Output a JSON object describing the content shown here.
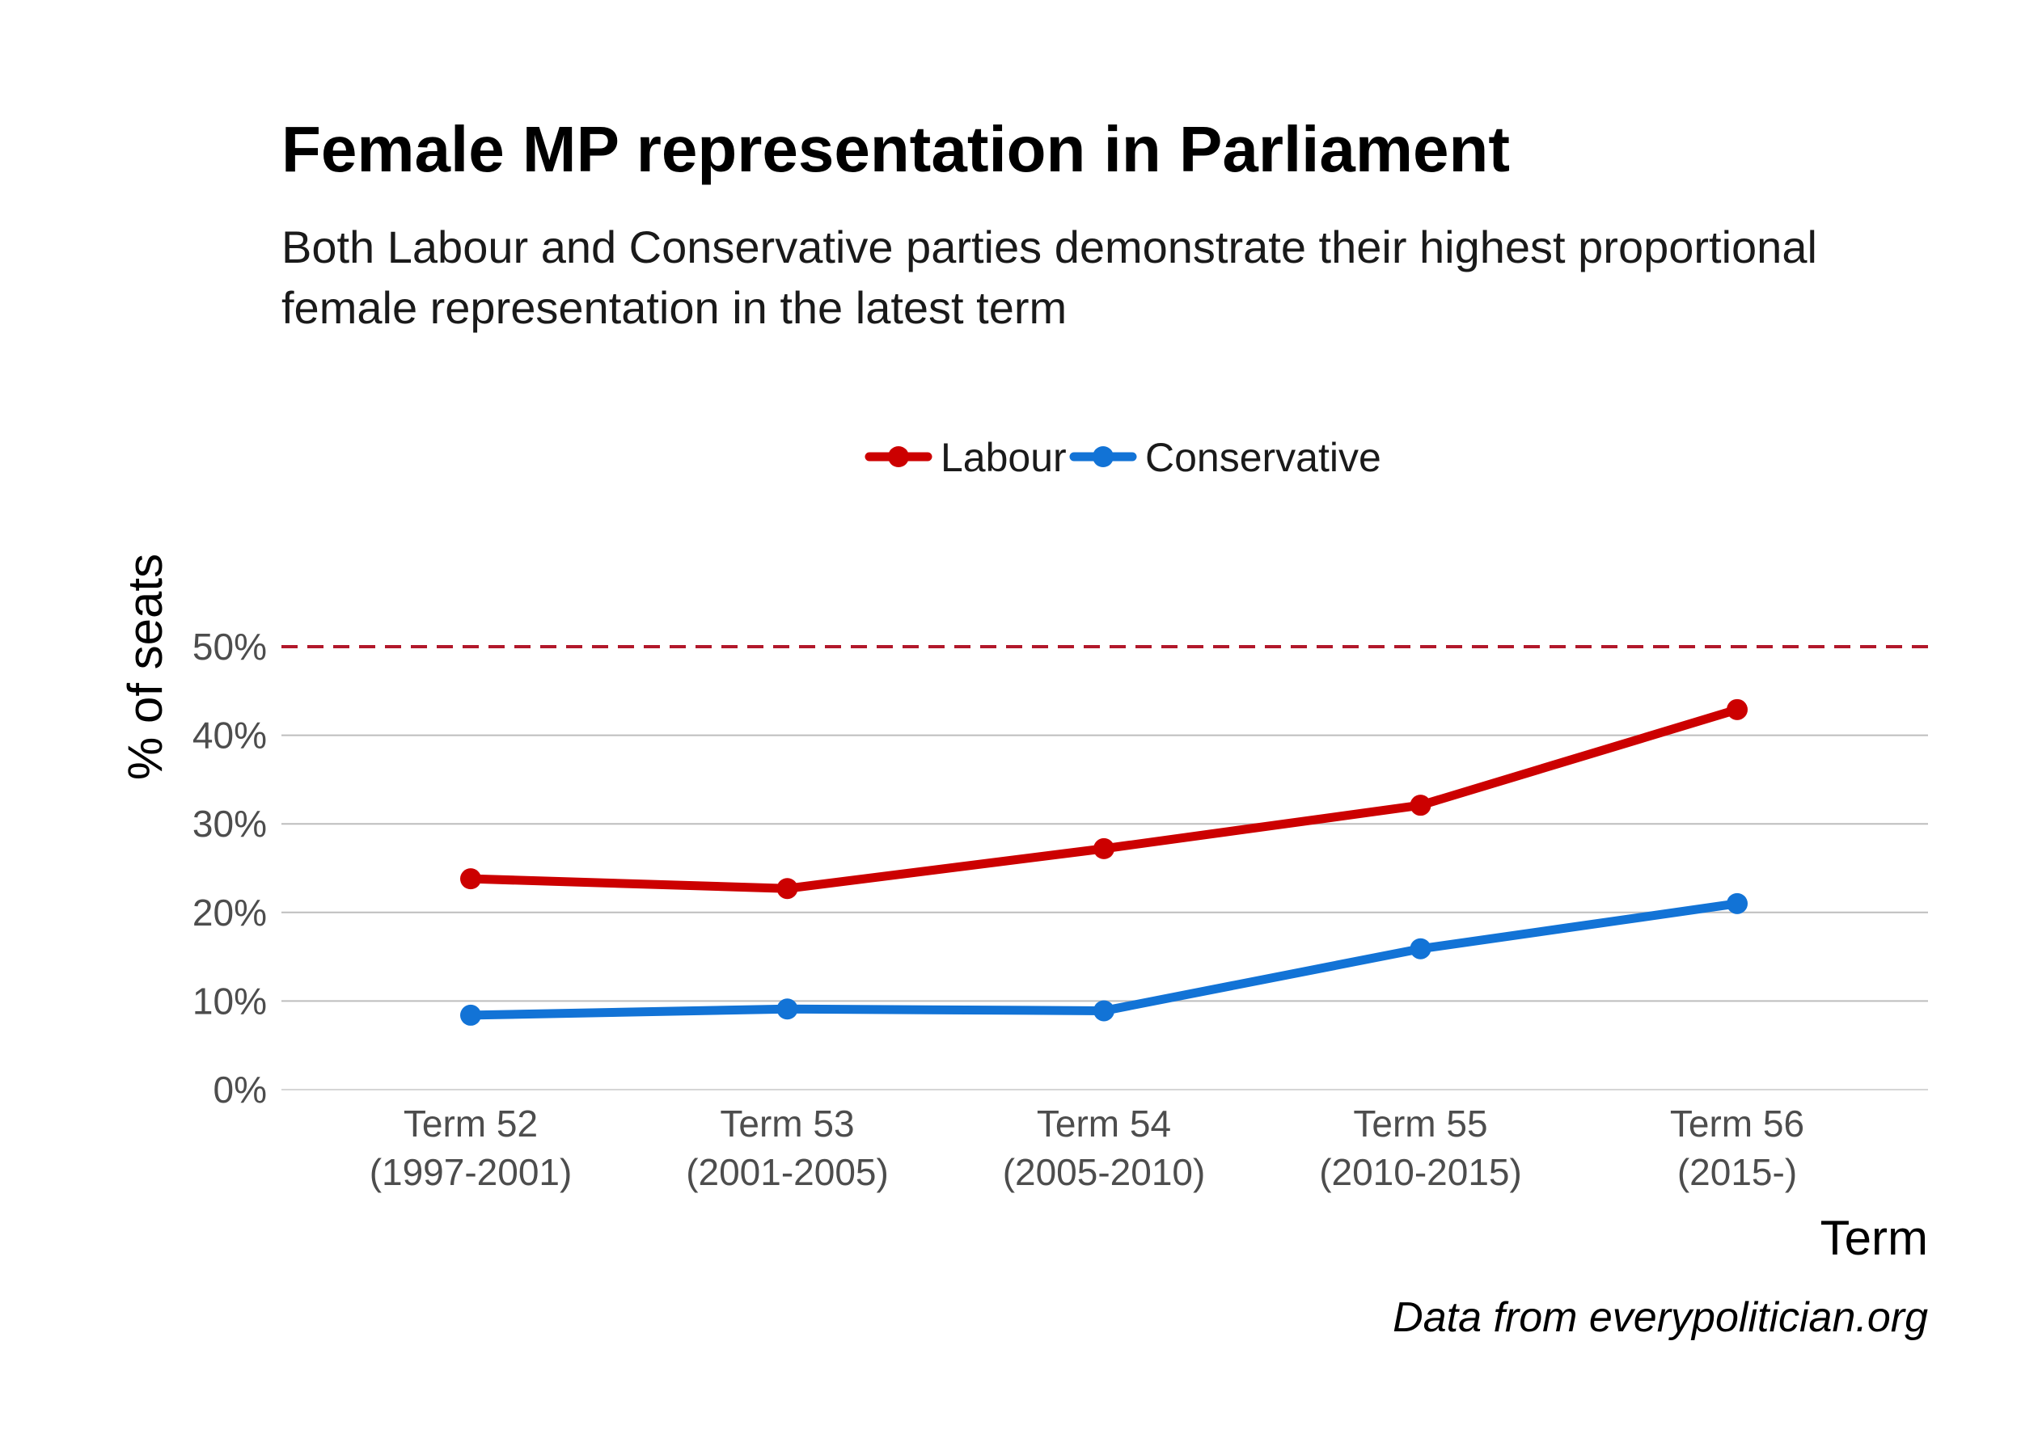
{
  "chart_data": {
    "type": "line",
    "title": "Female MP representation in Parliament",
    "subtitle": [
      "Both Labour and Conservative parties demonstrate their highest proportional",
      "female representation in the latest term"
    ],
    "xlabel": "Term",
    "ylabel": "% of seats",
    "caption": "Data from everypolitician.org",
    "categories": [
      [
        "Term 52",
        "(1997-2001)"
      ],
      [
        "Term 53",
        "(2001-2005)"
      ],
      [
        "Term 54",
        "(2005-2010)"
      ],
      [
        "Term 55",
        "(2010-2015)"
      ],
      [
        "Term 56",
        "(2015-)"
      ]
    ],
    "yticks": [
      0,
      10,
      20,
      30,
      40,
      50
    ],
    "ytick_labels": [
      "0%",
      "10%",
      "20%",
      "30%",
      "40%",
      "50%"
    ],
    "ylim": [
      0,
      50
    ],
    "reference_line": {
      "y": 50,
      "style": "dashed",
      "color": "#b2182b"
    },
    "legend_position": "top-center",
    "grid": true,
    "series": [
      {
        "name": "Labour",
        "color": "#cc0000",
        "values": [
          23.8,
          22.7,
          27.2,
          32.1,
          42.9
        ]
      },
      {
        "name": "Conservative",
        "color": "#1273d6",
        "values": [
          8.4,
          9.1,
          8.9,
          15.9,
          21.0
        ]
      }
    ]
  }
}
